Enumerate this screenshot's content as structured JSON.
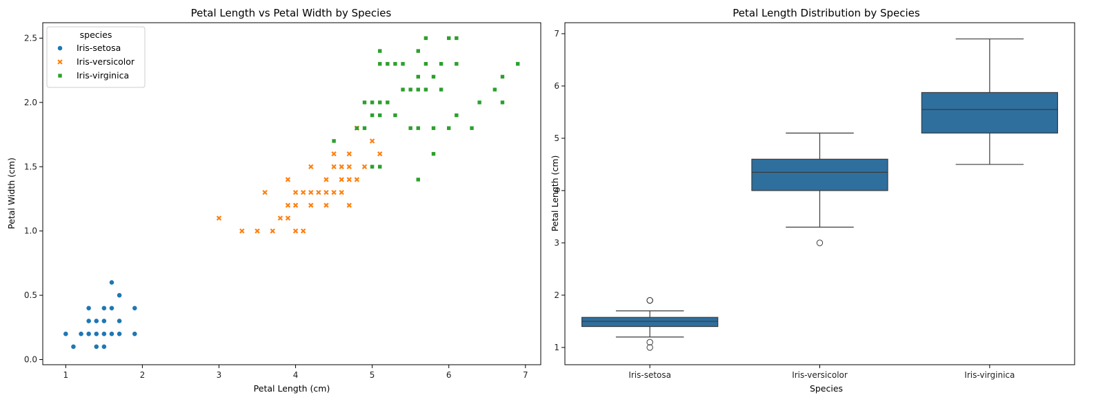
{
  "chart_data": [
    {
      "type": "scatter",
      "title": "Petal Length vs Petal Width by Species",
      "xlabel": "Petal Length (cm)",
      "ylabel": "Petal Width (cm)",
      "xlim": [
        0.7,
        7.2
      ],
      "ylim": [
        -0.04,
        2.62
      ],
      "xticks": [
        "1",
        "2",
        "3",
        "4",
        "5",
        "6",
        "7"
      ],
      "yticks": [
        "0.0",
        "0.5",
        "1.0",
        "1.5",
        "2.0",
        "2.5"
      ],
      "grid": false,
      "legend": {
        "title": "species",
        "placement": "top-left"
      },
      "series": [
        {
          "name": "Iris-setosa",
          "color": "#1f77b4",
          "marker": "circle",
          "points": [
            [
              1.0,
              0.2
            ],
            [
              1.1,
              0.1
            ],
            [
              1.2,
              0.2
            ],
            [
              1.3,
              0.2
            ],
            [
              1.3,
              0.3
            ],
            [
              1.3,
              0.4
            ],
            [
              1.4,
              0.1
            ],
            [
              1.4,
              0.2
            ],
            [
              1.4,
              0.3
            ],
            [
              1.5,
              0.1
            ],
            [
              1.5,
              0.2
            ],
            [
              1.5,
              0.3
            ],
            [
              1.5,
              0.4
            ],
            [
              1.6,
              0.2
            ],
            [
              1.6,
              0.4
            ],
            [
              1.6,
              0.6
            ],
            [
              1.7,
              0.2
            ],
            [
              1.7,
              0.3
            ],
            [
              1.7,
              0.5
            ],
            [
              1.9,
              0.2
            ],
            [
              1.9,
              0.4
            ]
          ]
        },
        {
          "name": "Iris-versicolor",
          "color": "#ff7f0e",
          "marker": "x",
          "points": [
            [
              3.0,
              1.1
            ],
            [
              3.3,
              1.0
            ],
            [
              3.5,
              1.0
            ],
            [
              3.6,
              1.3
            ],
            [
              3.7,
              1.0
            ],
            [
              3.8,
              1.1
            ],
            [
              3.9,
              1.1
            ],
            [
              3.9,
              1.2
            ],
            [
              3.9,
              1.4
            ],
            [
              4.0,
              1.0
            ],
            [
              4.0,
              1.2
            ],
            [
              4.0,
              1.3
            ],
            [
              4.1,
              1.0
            ],
            [
              4.1,
              1.3
            ],
            [
              4.2,
              1.2
            ],
            [
              4.2,
              1.3
            ],
            [
              4.2,
              1.5
            ],
            [
              4.3,
              1.3
            ],
            [
              4.4,
              1.2
            ],
            [
              4.4,
              1.3
            ],
            [
              4.4,
              1.4
            ],
            [
              4.5,
              1.3
            ],
            [
              4.5,
              1.5
            ],
            [
              4.5,
              1.6
            ],
            [
              4.6,
              1.3
            ],
            [
              4.6,
              1.4
            ],
            [
              4.6,
              1.5
            ],
            [
              4.7,
              1.2
            ],
            [
              4.7,
              1.4
            ],
            [
              4.7,
              1.5
            ],
            [
              4.7,
              1.6
            ],
            [
              4.8,
              1.4
            ],
            [
              4.8,
              1.8
            ],
            [
              4.9,
              1.5
            ],
            [
              5.0,
              1.7
            ],
            [
              5.1,
              1.6
            ]
          ]
        },
        {
          "name": "Iris-virginica",
          "color": "#2ca02c",
          "marker": "square",
          "points": [
            [
              4.5,
              1.7
            ],
            [
              4.8,
              1.8
            ],
            [
              4.9,
              1.8
            ],
            [
              4.9,
              2.0
            ],
            [
              5.0,
              1.5
            ],
            [
              5.0,
              1.9
            ],
            [
              5.0,
              2.0
            ],
            [
              5.1,
              1.5
            ],
            [
              5.1,
              1.9
            ],
            [
              5.1,
              2.0
            ],
            [
              5.1,
              2.3
            ],
            [
              5.1,
              2.4
            ],
            [
              5.2,
              2.0
            ],
            [
              5.2,
              2.3
            ],
            [
              5.3,
              1.9
            ],
            [
              5.3,
              2.3
            ],
            [
              5.4,
              2.1
            ],
            [
              5.4,
              2.3
            ],
            [
              5.5,
              1.8
            ],
            [
              5.5,
              2.1
            ],
            [
              5.6,
              1.4
            ],
            [
              5.6,
              1.8
            ],
            [
              5.6,
              2.1
            ],
            [
              5.6,
              2.2
            ],
            [
              5.6,
              2.4
            ],
            [
              5.7,
              2.1
            ],
            [
              5.7,
              2.3
            ],
            [
              5.7,
              2.5
            ],
            [
              5.8,
              1.6
            ],
            [
              5.8,
              1.8
            ],
            [
              5.8,
              2.2
            ],
            [
              5.9,
              2.1
            ],
            [
              5.9,
              2.3
            ],
            [
              6.0,
              1.8
            ],
            [
              6.0,
              2.5
            ],
            [
              6.1,
              1.9
            ],
            [
              6.1,
              2.3
            ],
            [
              6.1,
              2.5
            ],
            [
              6.3,
              1.8
            ],
            [
              6.4,
              2.0
            ],
            [
              6.6,
              2.1
            ],
            [
              6.7,
              2.0
            ],
            [
              6.7,
              2.2
            ],
            [
              6.9,
              2.3
            ]
          ]
        }
      ]
    },
    {
      "type": "box",
      "title": "Petal Length Distribution by Species",
      "xlabel": "Species",
      "ylabel": "Petal Length (cm)",
      "ylim": [
        0.67,
        7.21
      ],
      "yticks": [
        "1",
        "2",
        "3",
        "4",
        "5",
        "6",
        "7"
      ],
      "grid": false,
      "color": "#2e6f9e",
      "categories": [
        "Iris-setosa",
        "Iris-versicolor",
        "Iris-virginica"
      ],
      "boxes": [
        {
          "category": "Iris-setosa",
          "whisker_low": 1.2,
          "q1": 1.4,
          "median": 1.5,
          "q3": 1.575,
          "whisker_high": 1.7,
          "outliers": [
            1.0,
            1.1,
            1.9,
            1.9
          ]
        },
        {
          "category": "Iris-versicolor",
          "whisker_low": 3.3,
          "q1": 4.0,
          "median": 4.35,
          "q3": 4.6,
          "whisker_high": 5.1,
          "outliers": [
            3.0
          ]
        },
        {
          "category": "Iris-virginica",
          "whisker_low": 4.5,
          "q1": 5.1,
          "median": 5.55,
          "q3": 5.875,
          "whisker_high": 6.9,
          "outliers": []
        }
      ]
    }
  ]
}
